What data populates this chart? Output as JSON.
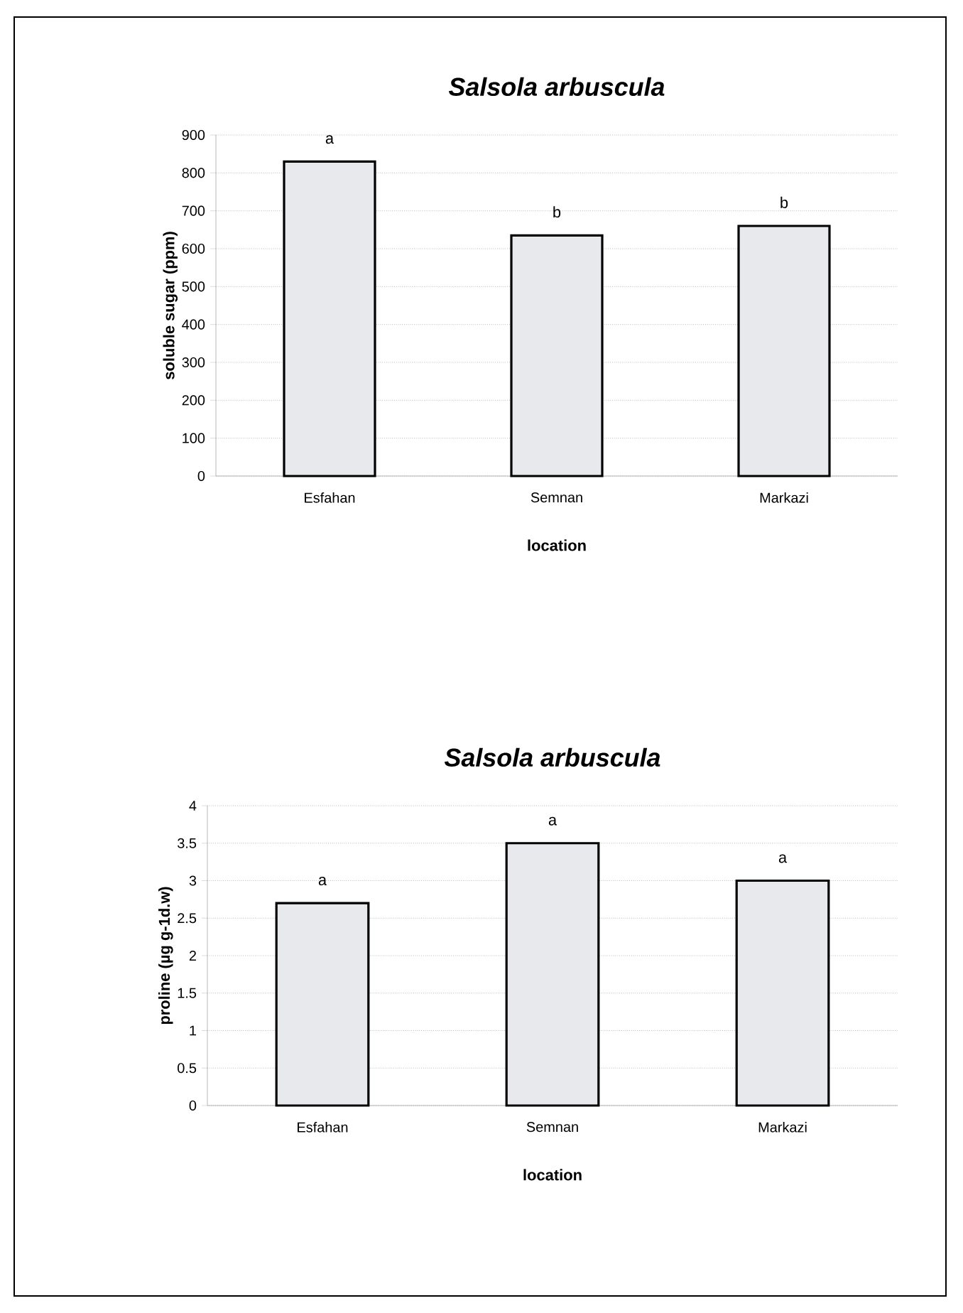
{
  "chart_data": [
    {
      "type": "bar",
      "title": "*Salsola arbuscula*",
      "xlabel": "location",
      "ylabel": "soluble sugar (ppm)",
      "categories": [
        "Esfahan",
        "Semnan",
        "Markazi"
      ],
      "values": [
        830,
        635,
        660
      ],
      "color": "#e8e9ec",
      "ylim": [
        0,
        900
      ],
      "yticks": [
        0,
        100,
        200,
        300,
        400,
        500,
        600,
        700,
        800,
        900
      ],
      "grid": "y",
      "annotations": [
        {
          "text": "a",
          "x": "Esfahan",
          "y": 830
        },
        {
          "text": "b",
          "x": "Semnan",
          "y": 635
        },
        {
          "text": "b",
          "x": "Markazi",
          "y": 660
        }
      ]
    },
    {
      "type": "bar",
      "title": "*Salsola arbuscula*",
      "xlabel": "location",
      "ylabel": "proline (µg g-1d.w)",
      "categories": [
        "Esfahan",
        "Semnan",
        "Markazi"
      ],
      "values": [
        2.7,
        3.5,
        3.0
      ],
      "color": "#e8e9ec",
      "ylim": [
        0,
        4
      ],
      "yticks": [
        0,
        0.5,
        1,
        1.5,
        2,
        2.5,
        3,
        3.5,
        4
      ],
      "grid": "y",
      "annotations": [
        {
          "text": "a",
          "x": "Esfahan",
          "y": 2.7
        },
        {
          "text": "a",
          "x": "Semnan",
          "y": 3.5
        },
        {
          "text": "a",
          "x": "Markazi",
          "y": 3.0
        }
      ]
    }
  ]
}
